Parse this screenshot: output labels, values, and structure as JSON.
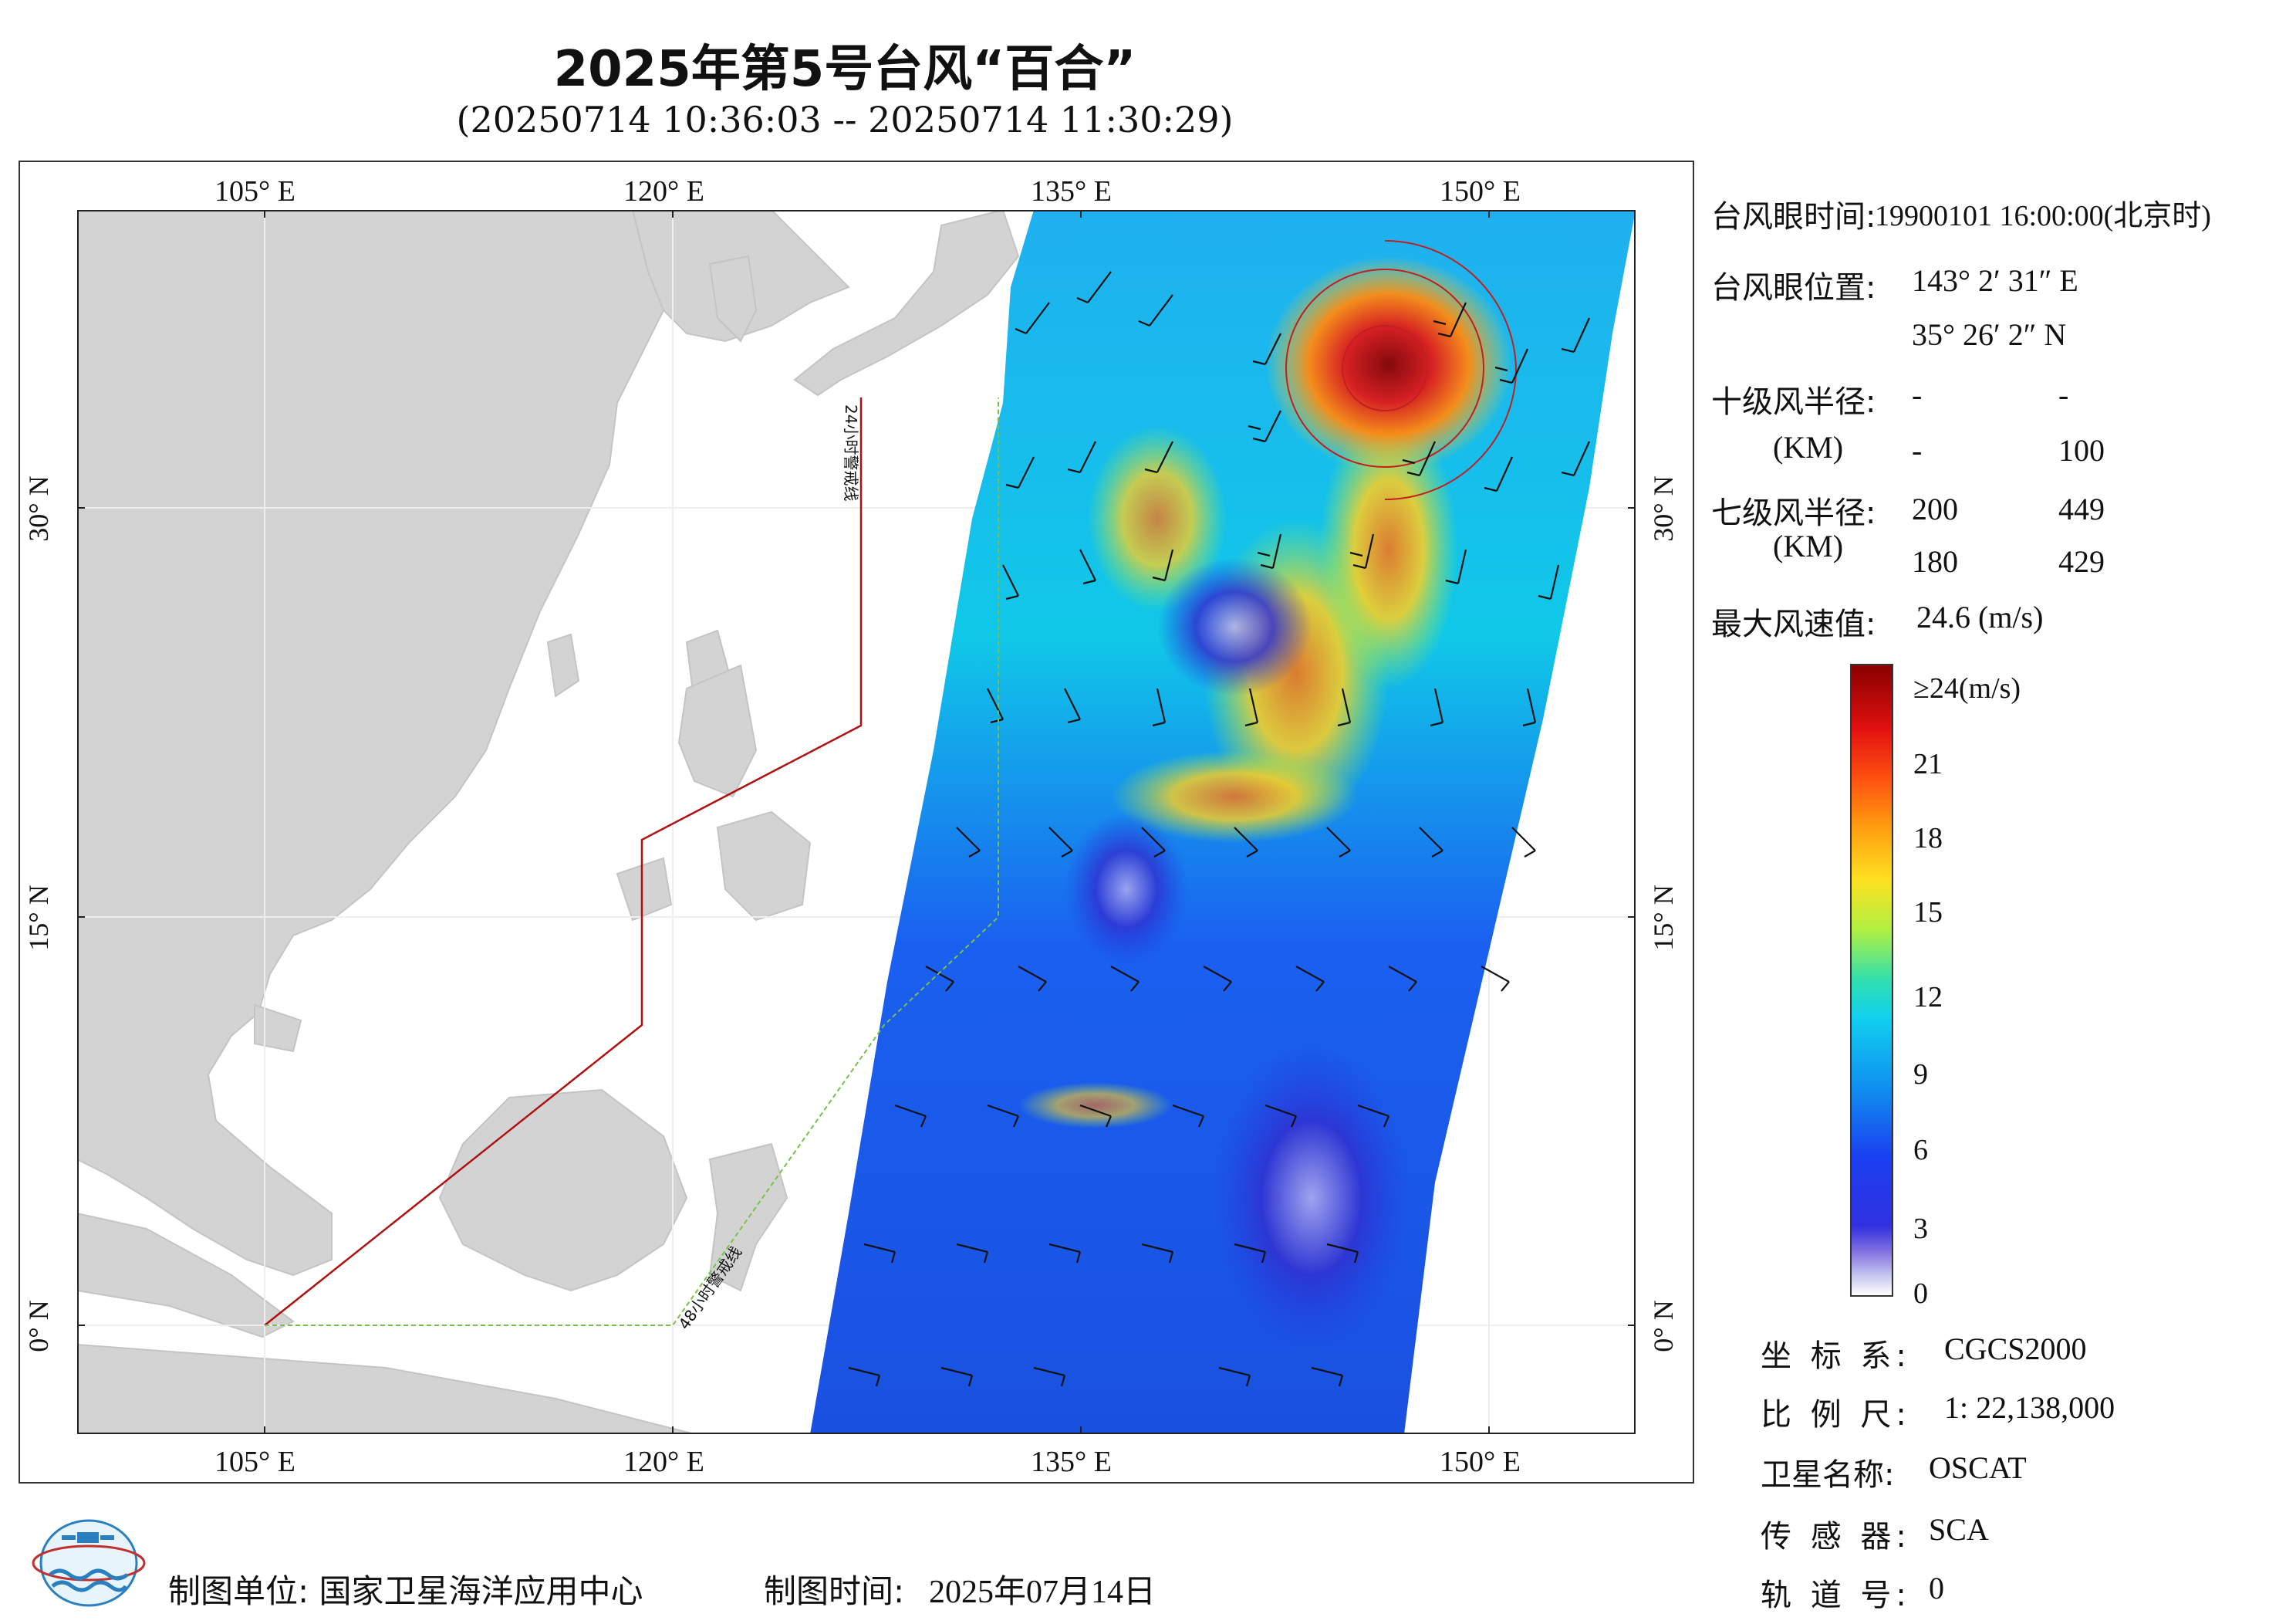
{
  "title": "2025年第5号台风“百合”",
  "subtitle": "(20250714 10:36:03 -- 20250714 11:30:29)",
  "axes": {
    "lon_labels": [
      "105° E",
      "120° E",
      "135° E",
      "150° E"
    ],
    "lat_labels": [
      "30° N",
      "15° N",
      "0° N"
    ]
  },
  "warning_lines": {
    "line24": "24小时警戒线",
    "line48": "48小时警戒线"
  },
  "info": {
    "eye_time_label": "台风眼时间:",
    "eye_time_value": "19900101 16:00:00(北京时)",
    "eye_pos_label": "台风眼位置:",
    "eye_lon": "143° 2′ 31″ E",
    "eye_lat": "35° 26′ 2″ N",
    "r10_label": "十级风半径:",
    "r10_unit": "(KM)",
    "r10_values": [
      "-",
      "-",
      "-",
      "100"
    ],
    "r7_label": "七级风半径:",
    "r7_unit": "(KM)",
    "r7_values": [
      "200",
      "449",
      "180",
      "429"
    ],
    "max_wind_label": "最大风速值:",
    "max_wind_value": "24.6  (m/s)"
  },
  "legend": {
    "labels": [
      "≥24(m/s)",
      "21",
      "18",
      "15",
      "12",
      "9",
      "6",
      "3",
      "0"
    ]
  },
  "meta": {
    "crs_label": "坐 标 系:",
    "crs_value": "CGCS2000",
    "scale_label": "比 例 尺:",
    "scale_value": "1: 22,138,000",
    "satellite_label": "卫星名称:",
    "satellite_value": "OSCAT",
    "sensor_label": "传 感 器:",
    "sensor_value": "SCA",
    "orbit_label": "轨 道 号:",
    "orbit_value": "0"
  },
  "footer": {
    "unit_text": "制图单位: 国家卫星海洋应用中心",
    "time_label": "制图时间:",
    "time_value": "2025年07月14日"
  },
  "colors": {
    "land": "#d3d3d3",
    "sea": "#ffffff",
    "line24": "#b01010",
    "line48": "#7ac04a"
  }
}
